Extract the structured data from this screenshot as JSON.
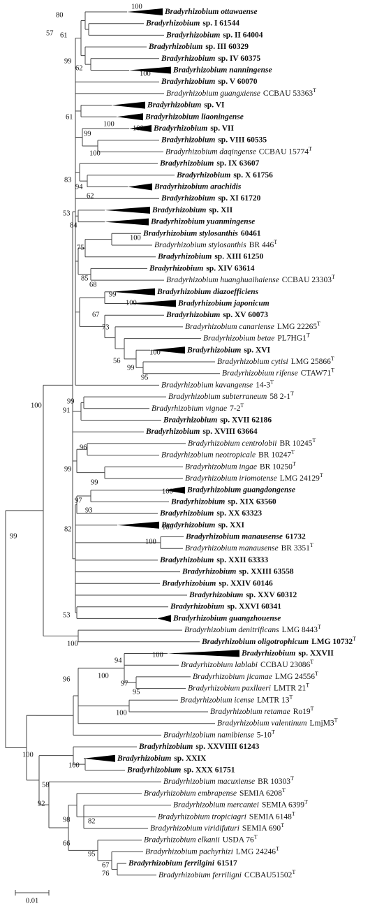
{
  "leaves": [
    {
      "taxon": "Bradyrhizobium ottawaense",
      "bold": true
    },
    {
      "taxon": "Bradyrhizobium",
      "strain": "sp. I 61544",
      "bold": true
    },
    {
      "taxon": "Bradyrhizobium",
      "strain": "sp. II 64004",
      "bold": true
    },
    {
      "taxon": "Bradyrhizobium",
      "strain": "sp. III 60329",
      "bold": true
    },
    {
      "taxon": "Bradyrhizobium",
      "strain": "sp. IV 60375",
      "bold": true
    },
    {
      "taxon": "Bradyrhizobium nanningense",
      "bold": true
    },
    {
      "taxon": "Bradyrhizobium",
      "strain": "sp. V 60070",
      "bold": true
    },
    {
      "taxon": "Bradyrhizobium guangxiense",
      "strain": "CCBAU 53363",
      "type_mark": "T",
      "bold": false
    },
    {
      "taxon": "Bradyrhizobium",
      "strain": "sp. VI",
      "bold": true
    },
    {
      "taxon": "Bradyrhizobium liaoningense",
      "bold": true
    },
    {
      "taxon": "Bradyrhizobium",
      "strain": "sp. VII",
      "bold": true
    },
    {
      "taxon": "Bradyrhizobium",
      "strain": "sp. VIII 60535",
      "bold": true
    },
    {
      "taxon": "Bradyrhizobium daqingense",
      "strain": "CCBAU 15774",
      "type_mark": "T",
      "bold": false
    },
    {
      "taxon": "Bradyrhizobium",
      "strain": "sp. IX 63607",
      "bold": true
    },
    {
      "taxon": "Bradyrhizobium",
      "strain": "sp. X 61756",
      "bold": true
    },
    {
      "taxon": "Bradyrhizobium arachidis",
      "bold": true
    },
    {
      "taxon": "Bradyrhizobium",
      "strain": "sp. XI 61720",
      "bold": true
    },
    {
      "taxon": "Bradyrhizobium",
      "strain": "sp. XII",
      "bold": true
    },
    {
      "taxon": "Bradyrhizobium yuanmingense",
      "bold": true
    },
    {
      "taxon": "Bradyrhizobium stylosanthis",
      "strain": "60461",
      "bold": true
    },
    {
      "taxon": "Bradyrhizobium stylosanthis",
      "strain": "BR 446",
      "type_mark": "T",
      "bold": false
    },
    {
      "taxon": "Bradyrhizobium",
      "strain": "sp. XIII 61250",
      "bold": true
    },
    {
      "taxon": "Bradyrhizobium",
      "strain": "sp. XIV 63614",
      "bold": true
    },
    {
      "taxon": "Bradyrhizobium huanghuaihaiense",
      "strain": "CCBAU 23303",
      "type_mark": "T",
      "bold": false
    },
    {
      "taxon": "Bradyrhizobium diazoefficiens",
      "bold": true
    },
    {
      "taxon": "Bradyrhizobium japonicum",
      "bold": true
    },
    {
      "taxon": "Bradyrhizobium",
      "strain": "sp. XV 60073",
      "bold": true
    },
    {
      "taxon": "Bradyrhizobium canariense",
      "strain": "LMG 22265",
      "type_mark": "T",
      "bold": false
    },
    {
      "taxon": "Bradyrhizobium betae",
      "strain": "PL7HG1",
      "type_mark": "T",
      "bold": false
    },
    {
      "taxon": "Bradyrhizobium",
      "strain": "sp. XVI",
      "bold": true
    },
    {
      "taxon": "Bradyrhizobium cytisi",
      "strain": "LMG 25866",
      "type_mark": "T",
      "bold": false
    },
    {
      "taxon": "Bradyrhizobium rifense",
      "strain": "CTAW71",
      "type_mark": "T",
      "bold": false
    },
    {
      "taxon": "Bradyrhizobium kavangense",
      "strain": "14-3",
      "type_mark": "T",
      "bold": false
    },
    {
      "taxon": "Bradyrhizobium subterraneum",
      "strain": "58 2-1",
      "type_mark": "T",
      "bold": false
    },
    {
      "taxon": "Bradyrhizobium vignae",
      "strain": "7-2",
      "type_mark": "T",
      "bold": false
    },
    {
      "taxon": "Bradyrhizobium",
      "strain": "sp. XVII 62186",
      "bold": true
    },
    {
      "taxon": "Bradyrhizobium",
      "strain": "sp. XVIII 63664",
      "bold": true
    },
    {
      "taxon": "Bradyrhizobium centrolobii",
      "strain": "BR 10245",
      "type_mark": "T",
      "bold": false
    },
    {
      "taxon": "Bradyrhizobium neotropicale",
      "strain": "BR 10247",
      "type_mark": "T",
      "bold": false
    },
    {
      "taxon": "Bradyrhizobium ingae",
      "strain": "BR 10250",
      "type_mark": "T",
      "bold": false
    },
    {
      "taxon": "Bradyrhizobium iriomotense",
      "strain": "LMG 24129",
      "type_mark": "T",
      "bold": false
    },
    {
      "taxon": "Bradyrhizobium guangdongense",
      "bold": true
    },
    {
      "taxon": "Bradyrhizobium",
      "strain": "sp. XIX 63560",
      "bold": true
    },
    {
      "taxon": "Bradyrhizobium",
      "strain": "sp. XX 63323",
      "bold": true
    },
    {
      "taxon": "Bradyrhizobium",
      "strain": "sp. XXI",
      "bold": true
    },
    {
      "taxon": "Bradyrhizobium manausense",
      "strain": "61732",
      "bold": true
    },
    {
      "taxon": "Bradyrhizobium manausense",
      "strain": "BR 3351",
      "type_mark": "T",
      "bold": false
    },
    {
      "taxon": "Bradyrhizobium",
      "strain": "sp. XXII 63333",
      "bold": true
    },
    {
      "taxon": "Bradyrhizobium",
      "strain": "sp. XXIII 63558",
      "bold": true
    },
    {
      "taxon": "Bradyrhizobium",
      "strain": "sp. XXIV 60146",
      "bold": true
    },
    {
      "taxon": "Bradyrhizobium",
      "strain": "sp. XXV 60312",
      "bold": true
    },
    {
      "taxon": "Bradyrhizobium",
      "strain": "sp. XXVI 60341",
      "bold": true
    },
    {
      "taxon": "Bradyrhizobium guangzhouense",
      "bold": true
    },
    {
      "taxon": "Bradyrhizobium denitrificans",
      "strain": "LMG 8443",
      "type_mark": "T",
      "bold": false
    },
    {
      "taxon": "Bradyrhizobium oligotrophicum",
      "strain": "LMG 10732",
      "type_mark": "T",
      "bold": true
    },
    {
      "taxon": "Bradyrhizobium",
      "strain": "sp. XXVII",
      "bold": true
    },
    {
      "taxon": "Bradyrhizobium lablabi",
      "strain": "CCBAU 23086",
      "type_mark": "T",
      "bold": false
    },
    {
      "taxon": "Bradyrhizobium jicamae",
      "strain": "LMG 24556",
      "type_mark": "T",
      "bold": false
    },
    {
      "taxon": "Bradyrhizobium paxllaeri",
      "strain": "LMTR 21",
      "type_mark": "T",
      "bold": false
    },
    {
      "taxon": "Bradyrhizobium icense",
      "strain": "LMTR 13",
      "type_mark": "T",
      "bold": false
    },
    {
      "taxon": "Bradyrhizobium retamae",
      "strain": "Ro19",
      "type_mark": "T",
      "bold": false
    },
    {
      "taxon": "Bradyrhizobium valentinum",
      "strain": "LmjM3",
      "type_mark": "T",
      "bold": false
    },
    {
      "taxon": "Bradyrhizobium namibiense",
      "strain": "5-10",
      "type_mark": "T",
      "bold": false
    },
    {
      "taxon": "Bradyrhizobium",
      "strain": "sp. XXVIIII 61243",
      "bold": true
    },
    {
      "taxon": "Bradyrhizobium",
      "strain": "sp. XXIX",
      "bold": true
    },
    {
      "taxon": "Bradyrhizobium",
      "strain": "sp. XXX 61751",
      "bold": true
    },
    {
      "taxon": "Bradyrhizobium macuxiense",
      "strain": "BR 10303",
      "type_mark": "T",
      "bold": false
    },
    {
      "taxon": "Bradyrhizobium embrapense",
      "strain": "SEMIA 6208",
      "type_mark": "T",
      "bold": false
    },
    {
      "taxon": "Bradyrhizobium mercantei",
      "strain": "SEMIA 6399",
      "type_mark": "T",
      "bold": false
    },
    {
      "taxon": "Bradyrhizobium tropiciagri",
      "strain": "SEMIA 6148",
      "type_mark": "T",
      "bold": false
    },
    {
      "taxon": "Bradyrhizobium viridifuturi",
      "strain": "SEMIA 690",
      "type_mark": "T",
      "bold": false
    },
    {
      "taxon": "Bradyrhizobium elkanii",
      "strain": "USDA 76",
      "type_mark": "T",
      "bold": false
    },
    {
      "taxon": "Bradyrhizobium pachyrhizi",
      "strain": "LMG 24246",
      "type_mark": "T",
      "bold": false
    },
    {
      "taxon": "Bradyrhizobium ferrilgini",
      "strain": "61517",
      "bold": true
    },
    {
      "taxon": "Bradyrhizobium ferriligni",
      "strain": "CCBAU51502",
      "type_mark": "T",
      "bold": false
    }
  ],
  "bootstrap": [
    80,
    100,
    57,
    61,
    99,
    62,
    100,
    61,
    100,
    100,
    99,
    100,
    83,
    94,
    62,
    53,
    84,
    100,
    75,
    85,
    68,
    99,
    100,
    67,
    73,
    100,
    56,
    99,
    95,
    99,
    91,
    100,
    96,
    99,
    99,
    100,
    97,
    93,
    100,
    99,
    82,
    100,
    53,
    100,
    94,
    100,
    100,
    96,
    97,
    95,
    100,
    100,
    100,
    58,
    92,
    98,
    82,
    66,
    95,
    67,
    76
  ],
  "scale_bar": "0.01"
}
